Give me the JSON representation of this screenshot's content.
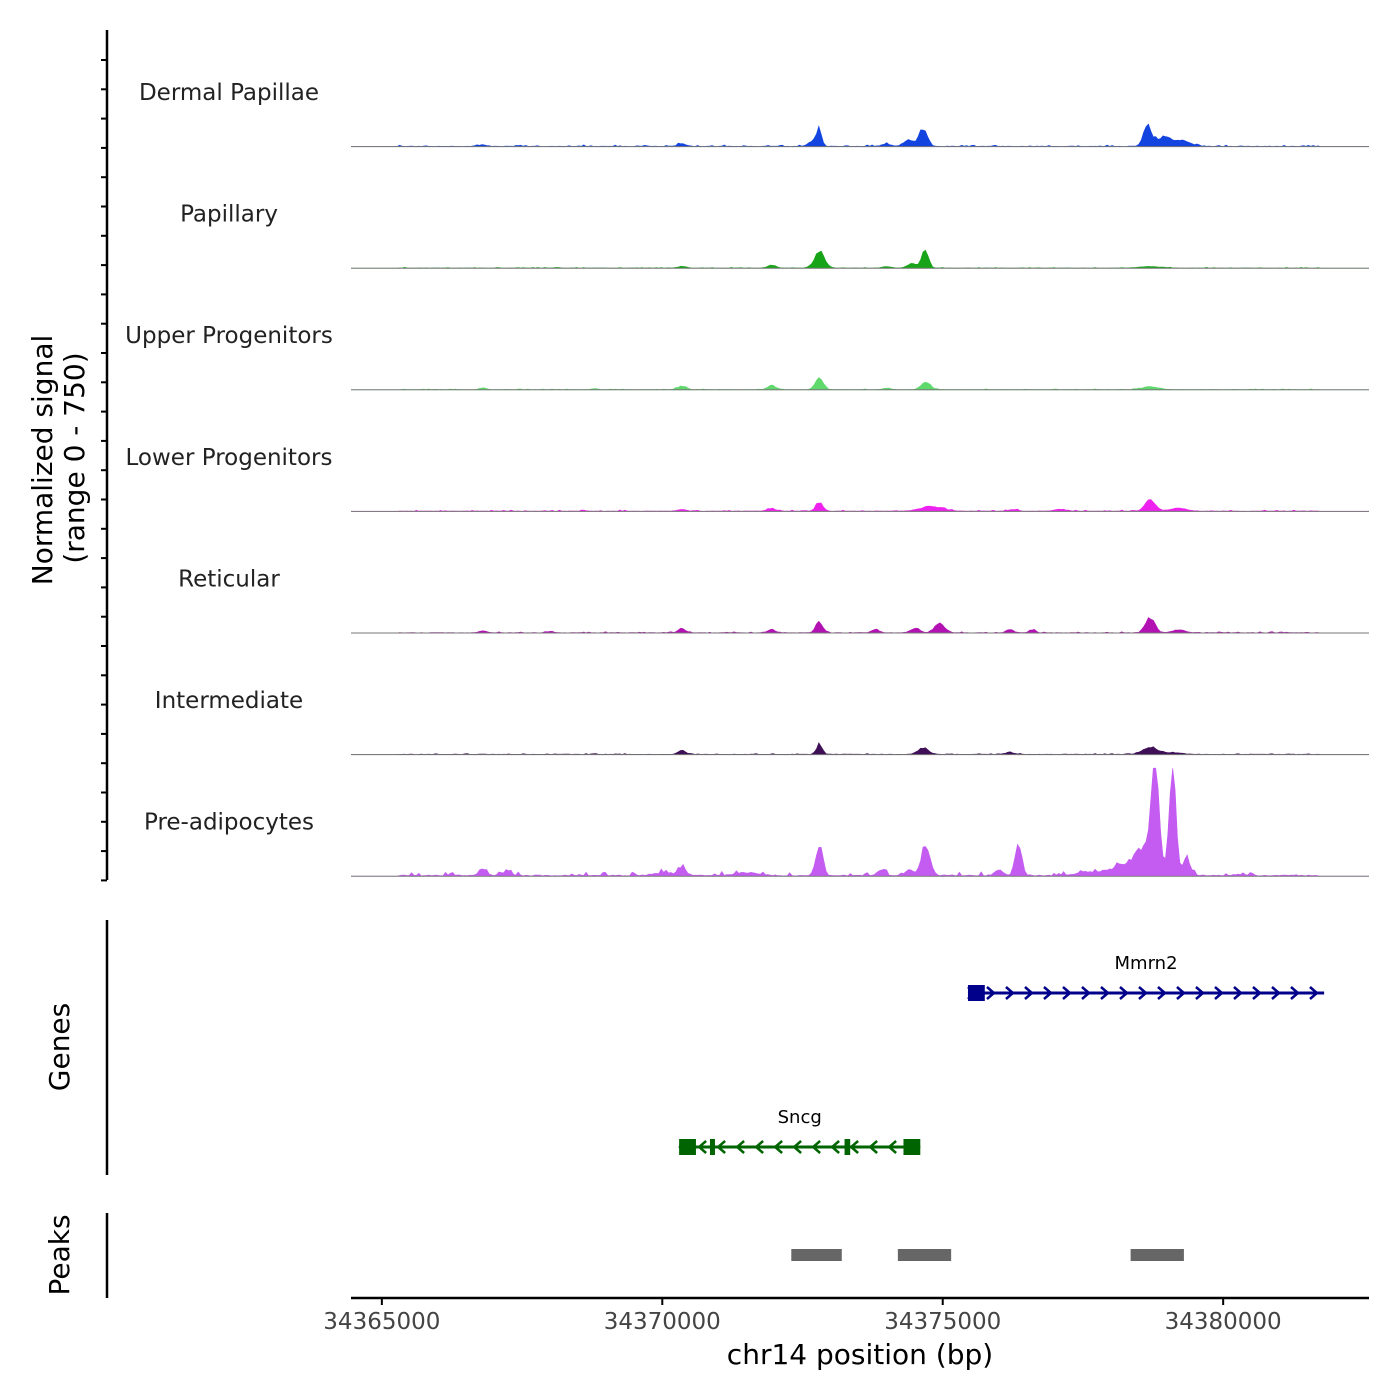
{
  "chart_data": {
    "type": "coverage",
    "chromosome": "chr14",
    "xlabel": "chr14 position (bp)",
    "xlim": [
      34364450,
      34382600
    ],
    "xticks": [
      34365000,
      34370000,
      34375000,
      34380000
    ],
    "signal_axis": {
      "label_line1": "Normalized signal",
      "label_line2": "(range 0 - 750)",
      "ymax": 750
    },
    "coverage_tracks": [
      {
        "name": "Dermal Papillae",
        "color": "#1444e0",
        "baseline": 3,
        "noise_amp": 4,
        "noise_seed": 11,
        "peaks": [
          [
            34366800,
            10,
            70
          ],
          [
            34370350,
            20,
            70
          ],
          [
            34372700,
            42,
            80
          ],
          [
            34372800,
            120,
            40
          ],
          [
            34374000,
            15,
            90
          ],
          [
            34374400,
            45,
            80
          ],
          [
            34374650,
            130,
            70
          ],
          [
            34378650,
            135,
            70
          ],
          [
            34378950,
            70,
            140
          ],
          [
            34379300,
            35,
            120
          ]
        ]
      },
      {
        "name": "Papillary",
        "color": "#18a418",
        "baseline": 2,
        "noise_amp": 2,
        "noise_seed": 23,
        "peaks": [
          [
            34370350,
            12,
            70
          ],
          [
            34371950,
            20,
            70
          ],
          [
            34372800,
            108,
            90
          ],
          [
            34374000,
            10,
            80
          ],
          [
            34374450,
            30,
            80
          ],
          [
            34374680,
            130,
            60
          ],
          [
            34378700,
            10,
            200
          ]
        ]
      },
      {
        "name": "Upper Progenitors",
        "color": "#5fd86c",
        "baseline": 2,
        "noise_amp": 2,
        "noise_seed": 37,
        "peaks": [
          [
            34366800,
            12,
            60
          ],
          [
            34368800,
            8,
            60
          ],
          [
            34370350,
            25,
            80
          ],
          [
            34371950,
            32,
            70
          ],
          [
            34372800,
            85,
            70
          ],
          [
            34374000,
            10,
            70
          ],
          [
            34374700,
            55,
            80
          ],
          [
            34378700,
            20,
            150
          ]
        ]
      },
      {
        "name": "Lower Progenitors",
        "color": "#ee22ee",
        "baseline": 3,
        "noise_amp": 3,
        "noise_seed": 41,
        "peaks": [
          [
            34370350,
            12,
            70
          ],
          [
            34371950,
            20,
            70
          ],
          [
            34372800,
            65,
            60
          ],
          [
            34374800,
            32,
            200
          ],
          [
            34376250,
            12,
            70
          ],
          [
            34377100,
            12,
            100
          ],
          [
            34378700,
            75,
            90
          ],
          [
            34379200,
            20,
            150
          ]
        ]
      },
      {
        "name": "Reticular",
        "color": "#b312b3",
        "baseline": 3,
        "noise_amp": 3,
        "noise_seed": 53,
        "peaks": [
          [
            34366800,
            12,
            70
          ],
          [
            34368000,
            10,
            60
          ],
          [
            34370350,
            25,
            70
          ],
          [
            34371950,
            25,
            60
          ],
          [
            34372800,
            80,
            60
          ],
          [
            34373800,
            20,
            70
          ],
          [
            34374500,
            30,
            80
          ],
          [
            34374950,
            60,
            90
          ],
          [
            34376200,
            25,
            60
          ],
          [
            34376600,
            22,
            50
          ],
          [
            34378700,
            110,
            80
          ],
          [
            34379200,
            20,
            110
          ]
        ]
      },
      {
        "name": "Intermediate",
        "color": "#3f0f58",
        "baseline": 3,
        "noise_amp": 2,
        "noise_seed": 67,
        "peaks": [
          [
            34370350,
            30,
            60
          ],
          [
            34372800,
            70,
            50
          ],
          [
            34374650,
            42,
            90
          ],
          [
            34376200,
            12,
            80
          ],
          [
            34378700,
            48,
            130
          ],
          [
            34379100,
            12,
            150
          ]
        ]
      },
      {
        "name": "Pre-adipocytes",
        "color": "#c45cf2",
        "baseline": 8,
        "noise_amp": 12,
        "noise_seed": 79,
        "peaks": [
          [
            34366800,
            45,
            70
          ],
          [
            34367200,
            25,
            80
          ],
          [
            34370350,
            60,
            70
          ],
          [
            34370000,
            20,
            150
          ],
          [
            34371500,
            20,
            200
          ],
          [
            34372800,
            230,
            60
          ],
          [
            34373900,
            40,
            70
          ],
          [
            34374700,
            210,
            80
          ],
          [
            34374400,
            40,
            70
          ],
          [
            34376350,
            220,
            60
          ],
          [
            34376000,
            40,
            70
          ],
          [
            34377500,
            20,
            120
          ],
          [
            34378400,
            80,
            400
          ],
          [
            34378780,
            730,
            70
          ],
          [
            34379100,
            750,
            60
          ],
          [
            34379350,
            120,
            60
          ],
          [
            34378550,
            120,
            120
          ],
          [
            34380300,
            8,
            120
          ]
        ]
      }
    ],
    "genes": [
      {
        "name": "Mmrn2",
        "strand": "+",
        "color": "#00008b",
        "start": 34375450,
        "end": 34381800,
        "row": 0,
        "exons": [
          [
            34375450,
            34375750
          ]
        ]
      },
      {
        "name": "Sncg",
        "strand": "-",
        "color": "#006400",
        "start": 34370300,
        "end": 34374600,
        "row": 1,
        "exons": [
          [
            34370300,
            34370600
          ],
          [
            34370850,
            34370900
          ],
          [
            34373250,
            34373350
          ],
          [
            34374300,
            34374600
          ]
        ]
      }
    ],
    "peaks_track": {
      "label": "Peaks",
      "color": "#666666",
      "intervals": [
        [
          34372300,
          34373200
        ],
        [
          34374200,
          34375150
        ],
        [
          34378350,
          34379300
        ]
      ]
    },
    "genes_label": "Genes"
  }
}
